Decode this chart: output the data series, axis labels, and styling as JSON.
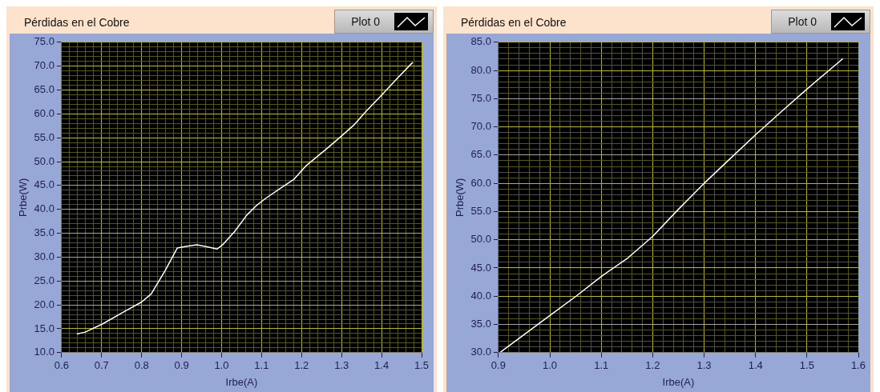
{
  "chart_data": [
    {
      "type": "line",
      "title": "Pérdidas en el Cobre",
      "xlabel": "Irbe(A)",
      "ylabel": "Prbe(W)",
      "legend": "top right",
      "grid": true,
      "marker": "none",
      "line_style": "solid",
      "series": [
        {
          "name": "Plot 0",
          "color": "#ffffff",
          "x": [
            0.638,
            0.659,
            0.702,
            0.757,
            0.8,
            0.824,
            0.859,
            0.889,
            0.914,
            0.938,
            0.961,
            0.989,
            1.004,
            1.032,
            1.063,
            1.087,
            1.11,
            1.15,
            1.181,
            1.212,
            1.267,
            1.299,
            1.33,
            1.361,
            1.401,
            1.44,
            1.478
          ],
          "values": [
            13.9,
            14.3,
            16.0,
            18.6,
            20.6,
            22.3,
            27.2,
            31.9,
            32.3,
            32.6,
            32.2,
            31.7,
            32.7,
            35.3,
            38.8,
            40.8,
            42.3,
            44.6,
            46.3,
            49.2,
            53.0,
            55.3,
            57.6,
            60.5,
            64.0,
            67.5,
            70.8
          ]
        }
      ],
      "xlim": [
        0.6,
        1.5
      ],
      "xticks": [
        0.6,
        0.7,
        0.8,
        0.9,
        {
          "value": 1,
          "label": "1.0"
        },
        1.1,
        1.2,
        1.3,
        1.4,
        1.5,
        {
          "value": 0.62,
          "label": null
        },
        {
          "value": 0.64,
          "label": null
        },
        {
          "value": 0.66,
          "label": null
        },
        {
          "value": 0.68,
          "label": null
        },
        {
          "value": 0.72,
          "label": null
        },
        {
          "value": 0.74,
          "label": null
        },
        {
          "value": 0.76,
          "label": null
        },
        {
          "value": 0.78,
          "label": null
        },
        {
          "value": 0.82,
          "label": null
        },
        {
          "value": 0.84,
          "label": null
        },
        {
          "value": 0.86,
          "label": null
        },
        {
          "value": 0.88,
          "label": null
        },
        {
          "value": 0.92,
          "label": null
        },
        {
          "value": 0.94,
          "label": null
        },
        {
          "value": 0.96,
          "label": null
        },
        {
          "value": 0.98,
          "label": null
        },
        {
          "value": 1.02,
          "label": null
        },
        {
          "value": 1.04,
          "label": null
        },
        {
          "value": 1.06,
          "label": null
        },
        {
          "value": 1.08,
          "label": null
        },
        {
          "value": 1.12,
          "label": null
        },
        {
          "value": 1.14,
          "label": null
        },
        {
          "value": 1.16,
          "label": null
        },
        {
          "value": 1.18,
          "label": null
        },
        {
          "value": 1.22,
          "label": null
        },
        {
          "value": 1.24,
          "label": null
        },
        {
          "value": 1.26,
          "label": null
        },
        {
          "value": 1.28,
          "label": null
        },
        {
          "value": 1.32,
          "label": null
        },
        {
          "value": 1.34,
          "label": null
        },
        {
          "value": 1.36,
          "label": null
        },
        {
          "value": 1.38,
          "label": null
        },
        {
          "value": 1.42,
          "label": null
        },
        {
          "value": 1.44,
          "label": null
        },
        {
          "value": 1.46,
          "label": null
        },
        {
          "value": 1.48,
          "label": null
        }
      ],
      "ylim": [
        10,
        75
      ],
      "yticks": [
        {
          "value": 10,
          "label": "10.0"
        },
        {
          "value": 15,
          "label": "15.0"
        },
        {
          "value": 20,
          "label": "20.0"
        },
        {
          "value": 25,
          "label": "25.0"
        },
        {
          "value": 30,
          "label": "30.0"
        },
        {
          "value": 35,
          "label": "35.0"
        },
        {
          "value": 40,
          "label": "40.0"
        },
        {
          "value": 45,
          "label": "45.0"
        },
        {
          "value": 50,
          "label": "50.0"
        },
        {
          "value": 55,
          "label": "55.0"
        },
        {
          "value": 60,
          "label": "60.0"
        },
        {
          "value": 65,
          "label": "65.0"
        },
        {
          "value": 70,
          "label": "70.0"
        },
        {
          "value": 75,
          "label": "75.0"
        },
        {
          "value": 11,
          "label": null
        },
        {
          "value": 12,
          "label": null
        },
        {
          "value": 13,
          "label": null
        },
        {
          "value": 14,
          "label": null
        },
        {
          "value": 16,
          "label": null
        },
        {
          "value": 17,
          "label": null
        },
        {
          "value": 18,
          "label": null
        },
        {
          "value": 19,
          "label": null
        },
        {
          "value": 21,
          "label": null
        },
        {
          "value": 22,
          "label": null
        },
        {
          "value": 23,
          "label": null
        },
        {
          "value": 24,
          "label": null
        },
        {
          "value": 26,
          "label": null
        },
        {
          "value": 27,
          "label": null
        },
        {
          "value": 28,
          "label": null
        },
        {
          "value": 29,
          "label": null
        },
        {
          "value": 31,
          "label": null
        },
        {
          "value": 32,
          "label": null
        },
        {
          "value": 33,
          "label": null
        },
        {
          "value": 34,
          "label": null
        },
        {
          "value": 36,
          "label": null
        },
        {
          "value": 37,
          "label": null
        },
        {
          "value": 38,
          "label": null
        },
        {
          "value": 39,
          "label": null
        },
        {
          "value": 41,
          "label": null
        },
        {
          "value": 42,
          "label": null
        },
        {
          "value": 43,
          "label": null
        },
        {
          "value": 44,
          "label": null
        },
        {
          "value": 46,
          "label": null
        },
        {
          "value": 47,
          "label": null
        },
        {
          "value": 48,
          "label": null
        },
        {
          "value": 49,
          "label": null
        },
        {
          "value": 51,
          "label": null
        },
        {
          "value": 52,
          "label": null
        },
        {
          "value": 53,
          "label": null
        },
        {
          "value": 54,
          "label": null
        },
        {
          "value": 56,
          "label": null
        },
        {
          "value": 57,
          "label": null
        },
        {
          "value": 58,
          "label": null
        },
        {
          "value": 59,
          "label": null
        },
        {
          "value": 61,
          "label": null
        },
        {
          "value": 62,
          "label": null
        },
        {
          "value": 63,
          "label": null
        },
        {
          "value": 64,
          "label": null
        },
        {
          "value": 66,
          "label": null
        },
        {
          "value": 67,
          "label": null
        },
        {
          "value": 68,
          "label": null
        },
        {
          "value": 69,
          "label": null
        },
        {
          "value": 71,
          "label": null
        },
        {
          "value": 72,
          "label": null
        },
        {
          "value": 73,
          "label": null
        },
        {
          "value": 74,
          "label": null
        }
      ]
    },
    {
      "type": "line",
      "title": "Pérdidas en el Cobre",
      "xlabel": "Irbe(A)",
      "ylabel": "Prbe(W)",
      "legend": "top right",
      "grid": true,
      "marker": "none",
      "line_style": "solid",
      "series": [
        {
          "name": "Plot 0",
          "color": "#ffffff",
          "x": [
            0.904,
            0.999,
            1.051,
            1.1,
            1.152,
            1.2,
            1.25,
            1.3,
            1.351,
            1.4,
            1.449,
            1.5,
            1.57
          ],
          "values": [
            30.1,
            36.5,
            40.0,
            43.5,
            46.8,
            50.6,
            55.4,
            60.0,
            64.4,
            68.6,
            72.6,
            76.7,
            82.1
          ]
        }
      ],
      "xlim": [
        0.9,
        1.6
      ],
      "xticks": [
        0.9,
        {
          "value": 1,
          "label": "1.0"
        },
        1.1,
        1.2,
        1.3,
        1.4,
        1.5,
        1.6,
        {
          "value": 0.92,
          "label": null
        },
        {
          "value": 0.94,
          "label": null
        },
        {
          "value": 0.96,
          "label": null
        },
        {
          "value": 0.98,
          "label": null
        },
        {
          "value": 1.02,
          "label": null
        },
        {
          "value": 1.04,
          "label": null
        },
        {
          "value": 1.06,
          "label": null
        },
        {
          "value": 1.08,
          "label": null
        },
        {
          "value": 1.12,
          "label": null
        },
        {
          "value": 1.14,
          "label": null
        },
        {
          "value": 1.16,
          "label": null
        },
        {
          "value": 1.18,
          "label": null
        },
        {
          "value": 1.22,
          "label": null
        },
        {
          "value": 1.24,
          "label": null
        },
        {
          "value": 1.26,
          "label": null
        },
        {
          "value": 1.28,
          "label": null
        },
        {
          "value": 1.32,
          "label": null
        },
        {
          "value": 1.34,
          "label": null
        },
        {
          "value": 1.36,
          "label": null
        },
        {
          "value": 1.38,
          "label": null
        },
        {
          "value": 1.42,
          "label": null
        },
        {
          "value": 1.44,
          "label": null
        },
        {
          "value": 1.46,
          "label": null
        },
        {
          "value": 1.48,
          "label": null
        },
        {
          "value": 1.52,
          "label": null
        },
        {
          "value": 1.54,
          "label": null
        },
        {
          "value": 1.56,
          "label": null
        },
        {
          "value": 1.58,
          "label": null
        }
      ],
      "ylim": [
        30,
        85
      ],
      "yticks": [
        {
          "value": 30,
          "label": "30.0"
        },
        {
          "value": 35,
          "label": "35.0"
        },
        {
          "value": 40,
          "label": "40.0"
        },
        {
          "value": 45,
          "label": "45.0"
        },
        {
          "value": 50,
          "label": "50.0"
        },
        {
          "value": 55,
          "label": "55.0"
        },
        {
          "value": 60,
          "label": "60.0"
        },
        {
          "value": 65,
          "label": "65.0"
        },
        {
          "value": 70,
          "label": "70.0"
        },
        {
          "value": 75,
          "label": "75.0"
        },
        {
          "value": 80,
          "label": "80.0"
        },
        {
          "value": 85,
          "label": "85.0"
        },
        {
          "value": 31,
          "label": null
        },
        {
          "value": 32,
          "label": null
        },
        {
          "value": 33,
          "label": null
        },
        {
          "value": 34,
          "label": null
        },
        {
          "value": 36,
          "label": null
        },
        {
          "value": 37,
          "label": null
        },
        {
          "value": 38,
          "label": null
        },
        {
          "value": 39,
          "label": null
        },
        {
          "value": 41,
          "label": null
        },
        {
          "value": 42,
          "label": null
        },
        {
          "value": 43,
          "label": null
        },
        {
          "value": 44,
          "label": null
        },
        {
          "value": 46,
          "label": null
        },
        {
          "value": 47,
          "label": null
        },
        {
          "value": 48,
          "label": null
        },
        {
          "value": 49,
          "label": null
        },
        {
          "value": 51,
          "label": null
        },
        {
          "value": 52,
          "label": null
        },
        {
          "value": 53,
          "label": null
        },
        {
          "value": 54,
          "label": null
        },
        {
          "value": 56,
          "label": null
        },
        {
          "value": 57,
          "label": null
        },
        {
          "value": 58,
          "label": null
        },
        {
          "value": 59,
          "label": null
        },
        {
          "value": 61,
          "label": null
        },
        {
          "value": 62,
          "label": null
        },
        {
          "value": 63,
          "label": null
        },
        {
          "value": 64,
          "label": null
        },
        {
          "value": 66,
          "label": null
        },
        {
          "value": 67,
          "label": null
        },
        {
          "value": 68,
          "label": null
        },
        {
          "value": 69,
          "label": null
        },
        {
          "value": 71,
          "label": null
        },
        {
          "value": 72,
          "label": null
        },
        {
          "value": 73,
          "label": null
        },
        {
          "value": 74,
          "label": null
        },
        {
          "value": 76,
          "label": null
        },
        {
          "value": 77,
          "label": null
        },
        {
          "value": 78,
          "label": null
        },
        {
          "value": 79,
          "label": null
        },
        {
          "value": 81,
          "label": null
        },
        {
          "value": 82,
          "label": null
        },
        {
          "value": 83,
          "label": null
        },
        {
          "value": 84,
          "label": null
        }
      ]
    }
  ]
}
